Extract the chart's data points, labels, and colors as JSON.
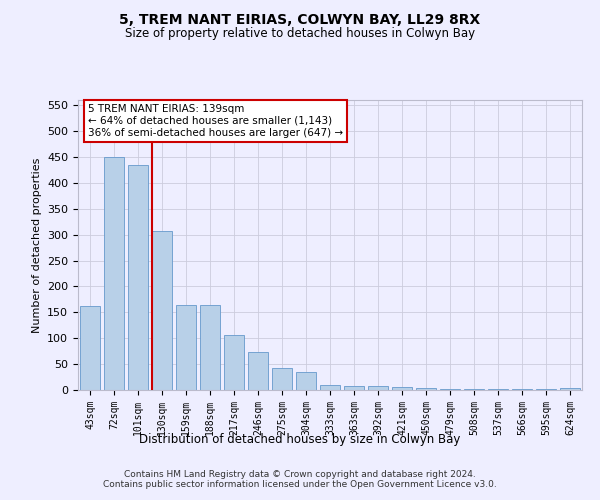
{
  "title": "5, TREM NANT EIRIAS, COLWYN BAY, LL29 8RX",
  "subtitle": "Size of property relative to detached houses in Colwyn Bay",
  "xlabel": "Distribution of detached houses by size in Colwyn Bay",
  "ylabel": "Number of detached properties",
  "categories": [
    "43sqm",
    "72sqm",
    "101sqm",
    "130sqm",
    "159sqm",
    "188sqm",
    "217sqm",
    "246sqm",
    "275sqm",
    "304sqm",
    "333sqm",
    "363sqm",
    "392sqm",
    "421sqm",
    "450sqm",
    "479sqm",
    "508sqm",
    "537sqm",
    "566sqm",
    "595sqm",
    "624sqm"
  ],
  "values": [
    163,
    450,
    435,
    308,
    165,
    165,
    106,
    74,
    42,
    35,
    10,
    7,
    7,
    5,
    3,
    2,
    1,
    1,
    1,
    1,
    4
  ],
  "bar_color": "#b8d0e8",
  "bar_edge_color": "#6699cc",
  "vline_x_index": 3,
  "vline_color": "#cc0000",
  "annotation_text": "5 TREM NANT EIRIAS: 139sqm\n← 64% of detached houses are smaller (1,143)\n36% of semi-detached houses are larger (647) →",
  "annotation_box_color": "#ffffff",
  "annotation_box_edge_color": "#cc0000",
  "ylim": [
    0,
    560
  ],
  "yticks": [
    0,
    50,
    100,
    150,
    200,
    250,
    300,
    350,
    400,
    450,
    500,
    550
  ],
  "footer_line1": "Contains HM Land Registry data © Crown copyright and database right 2024.",
  "footer_line2": "Contains public sector information licensed under the Open Government Licence v3.0.",
  "bg_color": "#eeeeff",
  "grid_color": "#ccccdd"
}
